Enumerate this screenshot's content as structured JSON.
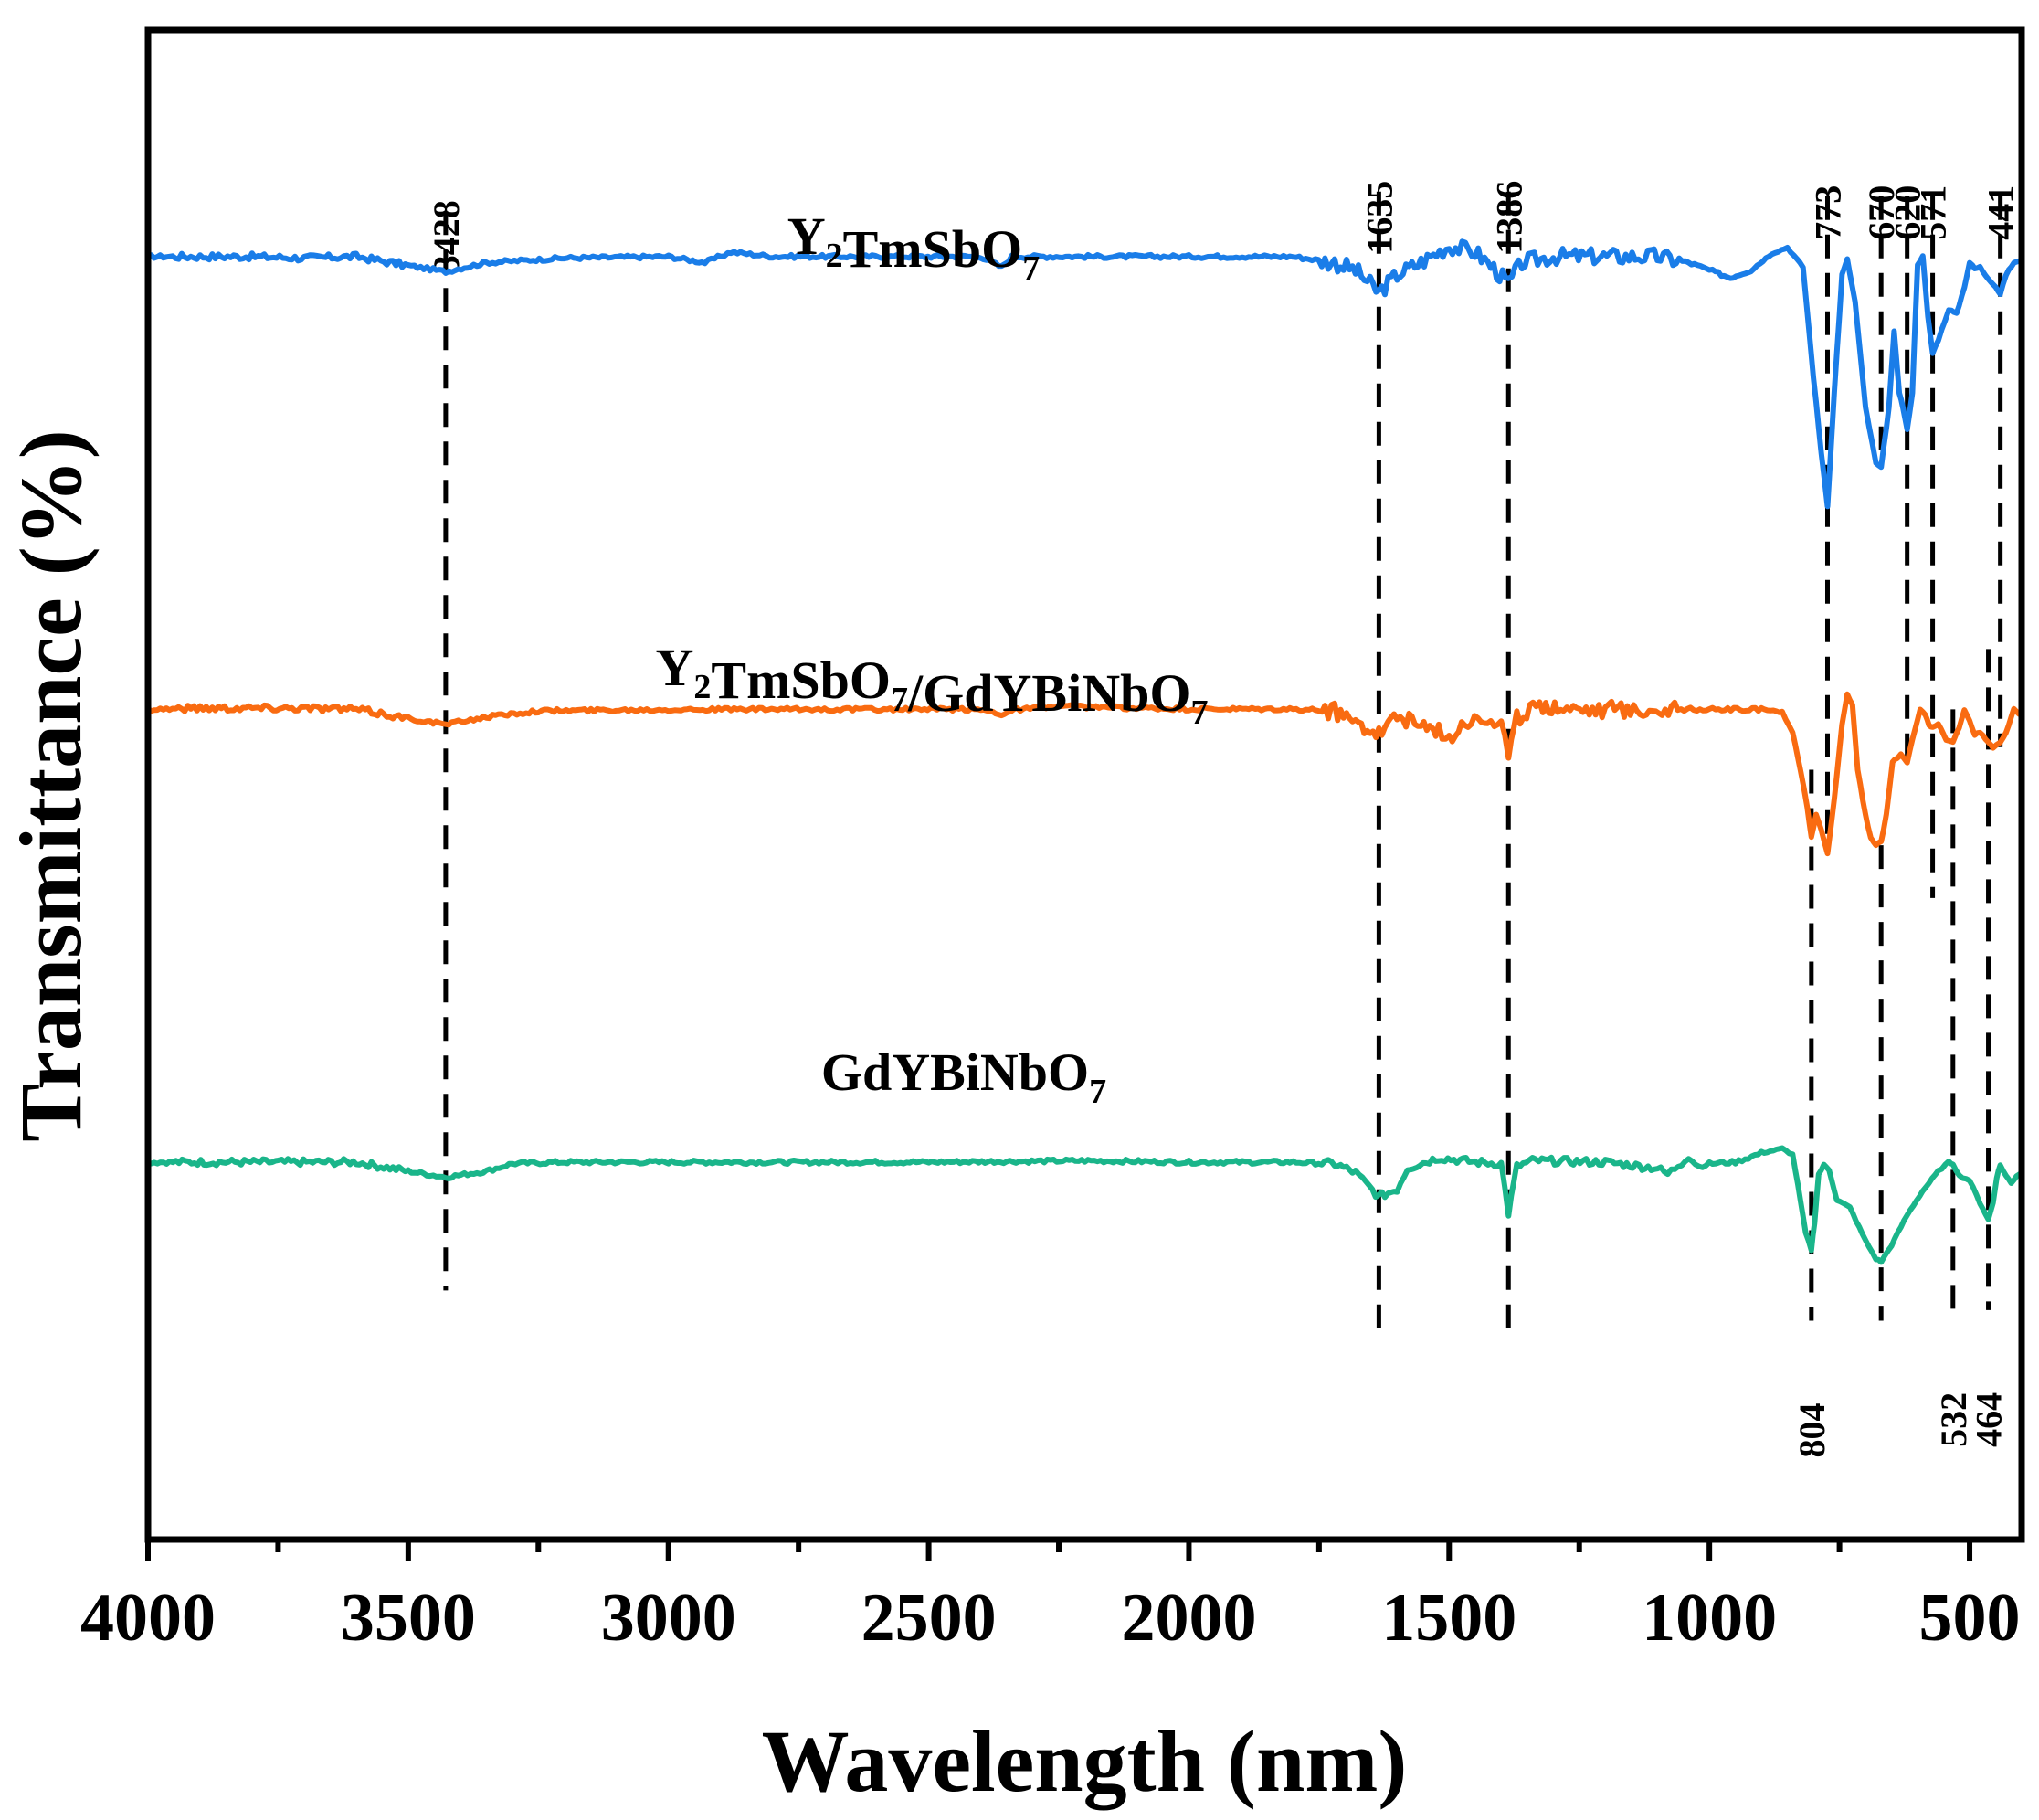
{
  "chart_data": {
    "type": "line",
    "title": "",
    "xlabel": "Wavelength (nm)",
    "ylabel": "Transmittance (%)",
    "xlim": [
      4000,
      400
    ],
    "x_ticks": [
      4000,
      3500,
      3000,
      2500,
      2000,
      1500,
      1000,
      500
    ],
    "x_tick_labels": [
      "4000",
      "3500",
      "3000",
      "2500",
      "2000",
      "1500",
      "1000",
      "500"
    ],
    "y_ticks_shown": false,
    "grid": false,
    "series": [
      {
        "name": "Y2TmSbO7",
        "label_base": "Y",
        "label_parts": [
          {
            "text": "Y",
            "sub": false
          },
          {
            "text": "2",
            "sub": true
          },
          {
            "text": "TmSbO",
            "sub": false
          },
          {
            "text": "7",
            "sub": true
          }
        ],
        "color": "#1a7de8",
        "baseline": 85,
        "points": [
          [
            4000,
            85
          ],
          [
            3900,
            85
          ],
          [
            3800,
            85
          ],
          [
            3700,
            84.9
          ],
          [
            3600,
            85
          ],
          [
            3500,
            84.4
          ],
          [
            3428,
            84
          ],
          [
            3350,
            84.6
          ],
          [
            3200,
            84.9
          ],
          [
            3000,
            85
          ],
          [
            2930,
            84.6
          ],
          [
            2880,
            85.3
          ],
          [
            2800,
            85
          ],
          [
            2400,
            85
          ],
          [
            2360,
            84.3
          ],
          [
            2340,
            85
          ],
          [
            2200,
            85
          ],
          [
            2000,
            85
          ],
          [
            1800,
            85
          ],
          [
            1720,
            84.6
          ],
          [
            1680,
            84.1
          ],
          [
            1635,
            82.6
          ],
          [
            1600,
            83.8
          ],
          [
            1560,
            84.5
          ],
          [
            1500,
            85.7
          ],
          [
            1450,
            85.3
          ],
          [
            1420,
            84.4
          ],
          [
            1386,
            83.2
          ],
          [
            1360,
            84.6
          ],
          [
            1300,
            85
          ],
          [
            1100,
            85
          ],
          [
            1040,
            84.6
          ],
          [
            1000,
            84.1
          ],
          [
            960,
            83.6
          ],
          [
            920,
            84.1
          ],
          [
            880,
            85.2
          ],
          [
            850,
            85.6
          ],
          [
            820,
            84.3
          ],
          [
            800,
            77
          ],
          [
            785,
            72
          ],
          [
            773,
            68.5
          ],
          [
            760,
            76
          ],
          [
            745,
            83.8
          ],
          [
            735,
            84.8
          ],
          [
            720,
            82
          ],
          [
            700,
            75
          ],
          [
            680,
            71.3
          ],
          [
            670,
            71
          ],
          [
            655,
            75
          ],
          [
            645,
            80
          ],
          [
            635,
            76
          ],
          [
            628,
            75
          ],
          [
            620,
            73.5
          ],
          [
            610,
            76
          ],
          [
            600,
            84.5
          ],
          [
            590,
            85
          ],
          [
            580,
            81
          ],
          [
            571,
            78.6
          ],
          [
            560,
            79.5
          ],
          [
            540,
            81.5
          ],
          [
            525,
            81.2
          ],
          [
            510,
            83
          ],
          [
            500,
            84.6
          ],
          [
            490,
            84.2
          ],
          [
            480,
            84.3
          ],
          [
            470,
            83.8
          ],
          [
            460,
            83.4
          ],
          [
            450,
            83
          ],
          [
            441,
            82.5
          ],
          [
            430,
            83.8
          ],
          [
            415,
            84.6
          ],
          [
            400,
            84.7
          ]
        ]
      },
      {
        "name": "Y2TmSbO7/GdYBiNbO7",
        "label_parts": [
          {
            "text": "Y",
            "sub": false
          },
          {
            "text": "2",
            "sub": true
          },
          {
            "text": "TmSbO",
            "sub": false
          },
          {
            "text": "7",
            "sub": true
          },
          {
            "text": "/GdYBiNbO",
            "sub": false
          },
          {
            "text": "7",
            "sub": true
          }
        ],
        "color": "#f96b11",
        "baseline": 55,
        "points": [
          [
            4000,
            55
          ],
          [
            3900,
            55.1
          ],
          [
            3800,
            55.1
          ],
          [
            3700,
            55.1
          ],
          [
            3600,
            55
          ],
          [
            3500,
            54.4
          ],
          [
            3428,
            54
          ],
          [
            3350,
            54.5
          ],
          [
            3250,
            54.9
          ],
          [
            3000,
            55
          ],
          [
            2400,
            55
          ],
          [
            2360,
            54.7
          ],
          [
            2330,
            55
          ],
          [
            2250,
            55.2
          ],
          [
            2000,
            55
          ],
          [
            1800,
            55
          ],
          [
            1720,
            54.9
          ],
          [
            1680,
            54.2
          ],
          [
            1635,
            53.5
          ],
          [
            1600,
            54.6
          ],
          [
            1560,
            54
          ],
          [
            1520,
            53.5
          ],
          [
            1500,
            53.1
          ],
          [
            1470,
            54.3
          ],
          [
            1420,
            54.4
          ],
          [
            1400,
            54
          ],
          [
            1386,
            51.8
          ],
          [
            1370,
            54.4
          ],
          [
            1320,
            55.3
          ],
          [
            1280,
            55.2
          ],
          [
            1200,
            55
          ],
          [
            1000,
            55
          ],
          [
            900,
            55
          ],
          [
            860,
            54.8
          ],
          [
            840,
            53.5
          ],
          [
            825,
            51
          ],
          [
            812,
            48.5
          ],
          [
            804,
            46.5
          ],
          [
            795,
            48
          ],
          [
            785,
            47
          ],
          [
            773,
            45.5
          ],
          [
            760,
            49
          ],
          [
            745,
            54
          ],
          [
            735,
            56
          ],
          [
            725,
            55.3
          ],
          [
            715,
            51
          ],
          [
            700,
            48
          ],
          [
            690,
            46.5
          ],
          [
            680,
            46
          ],
          [
            670,
            46.2
          ],
          [
            660,
            48
          ],
          [
            648,
            51.5
          ],
          [
            640,
            51.8
          ],
          [
            632,
            52
          ],
          [
            620,
            51.5
          ],
          [
            610,
            53
          ],
          [
            595,
            55
          ],
          [
            585,
            54.6
          ],
          [
            578,
            54
          ],
          [
            571,
            53.8
          ],
          [
            560,
            54
          ],
          [
            545,
            53
          ],
          [
            532,
            52.8
          ],
          [
            520,
            53.8
          ],
          [
            510,
            55
          ],
          [
            500,
            54.2
          ],
          [
            490,
            53.3
          ],
          [
            480,
            53.5
          ],
          [
            464,
            52.8
          ],
          [
            455,
            52.5
          ],
          [
            441,
            52.8
          ],
          [
            430,
            53.5
          ],
          [
            415,
            55
          ],
          [
            400,
            54.6
          ]
        ]
      },
      {
        "name": "GdYBiNbO7",
        "label_parts": [
          {
            "text": "GdYBiNbO",
            "sub": false
          },
          {
            "text": "7",
            "sub": true
          }
        ],
        "color": "#1ab58a",
        "baseline": 25,
        "points": [
          [
            4000,
            25
          ],
          [
            3600,
            25
          ],
          [
            3500,
            24.4
          ],
          [
            3428,
            24
          ],
          [
            3350,
            24.4
          ],
          [
            3300,
            24.9
          ],
          [
            3200,
            25
          ],
          [
            3000,
            25
          ],
          [
            2500,
            25
          ],
          [
            2200,
            25.1
          ],
          [
            2000,
            25
          ],
          [
            1800,
            25
          ],
          [
            1720,
            24.9
          ],
          [
            1680,
            24.3
          ],
          [
            1660,
            23.6
          ],
          [
            1635,
            22.7
          ],
          [
            1600,
            23.2
          ],
          [
            1580,
            24.6
          ],
          [
            1520,
            25.3
          ],
          [
            1450,
            25
          ],
          [
            1400,
            24.9
          ],
          [
            1386,
            21.6
          ],
          [
            1370,
            24.7
          ],
          [
            1340,
            25.1
          ],
          [
            1200,
            25
          ],
          [
            1100,
            24.6
          ],
          [
            1080,
            24.2
          ],
          [
            1060,
            24.8
          ],
          [
            1040,
            25.3
          ],
          [
            1020,
            24.7
          ],
          [
            1000,
            24.9
          ],
          [
            950,
            25
          ],
          [
            900,
            25.6
          ],
          [
            860,
            25.9
          ],
          [
            840,
            25.5
          ],
          [
            830,
            23.5
          ],
          [
            815,
            20.3
          ],
          [
            804,
            19.2
          ],
          [
            798,
            21
          ],
          [
            790,
            24.2
          ],
          [
            780,
            24.8
          ],
          [
            770,
            24.5
          ],
          [
            755,
            22.5
          ],
          [
            730,
            22
          ],
          [
            700,
            19.8
          ],
          [
            680,
            18.6
          ],
          [
            670,
            18.4
          ],
          [
            650,
            19.5
          ],
          [
            620,
            21.5
          ],
          [
            590,
            23.1
          ],
          [
            560,
            24.4
          ],
          [
            540,
            25
          ],
          [
            532,
            24.9
          ],
          [
            520,
            24.1
          ],
          [
            500,
            23.8
          ],
          [
            480,
            22.3
          ],
          [
            464,
            21.2
          ],
          [
            455,
            22.3
          ],
          [
            448,
            24
          ],
          [
            441,
            24.8
          ],
          [
            430,
            24.1
          ],
          [
            420,
            23.6
          ],
          [
            410,
            24.1
          ],
          [
            400,
            24.3
          ]
        ]
      }
    ],
    "peak_markers": [
      {
        "x": 3428,
        "label": "3428",
        "y_from": 88,
        "y_to": 16.5,
        "label_pos": "top"
      },
      {
        "x": 1635,
        "label": "1635",
        "y_from": 89.3,
        "y_to": 13.5,
        "label_pos": "top"
      },
      {
        "x": 1386,
        "label": "1386",
        "y_from": 89.3,
        "y_to": 13.5,
        "label_pos": "top"
      },
      {
        "x": 773,
        "label": "773",
        "y_from": 89,
        "y_to": 45.5,
        "label_pos": "top"
      },
      {
        "x": 670,
        "label": "670",
        "y_from": 89,
        "y_to": 71.2,
        "label_pos": "top"
      },
      {
        "x": 620,
        "label": "620",
        "y_from": 89,
        "y_to": 51.8,
        "label_pos": "top"
      },
      {
        "x": 571,
        "label": "571",
        "y_from": 89,
        "y_to": 42.5,
        "label_pos": "top"
      },
      {
        "x": 441,
        "label": "441",
        "y_from": 89,
        "y_to": 52.5,
        "label_pos": "top"
      },
      {
        "x": 804,
        "label": "804",
        "y_from": 51,
        "y_to": 14.5,
        "label_pos": "bottom"
      },
      {
        "x": 670,
        "label": "",
        "y_from": 46,
        "y_to": 14.5,
        "label_pos": "none"
      },
      {
        "x": 532,
        "label": "532",
        "y_from": 55,
        "y_to": 15.2,
        "label_pos": "bottom"
      },
      {
        "x": 464,
        "label": "464",
        "y_from": 59,
        "y_to": 15.2,
        "label_pos": "bottom"
      }
    ]
  }
}
